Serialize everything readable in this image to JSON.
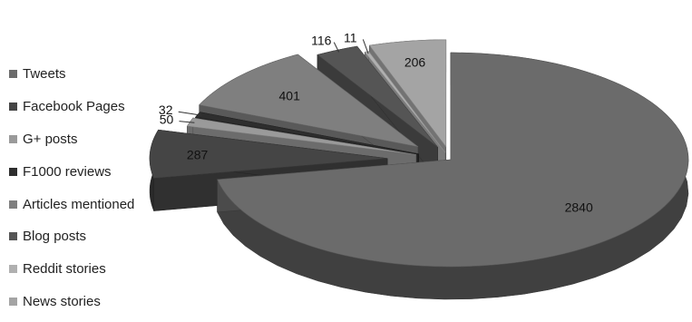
{
  "chart_data": {
    "type": "pie",
    "variant": "3d-exploded",
    "title": "",
    "legend_position": "left",
    "categories": [
      "Tweets",
      "Facebook Pages",
      "G+ posts",
      "F1000 reviews",
      "Articles mentioned",
      "Blog posts",
      "Reddit stories",
      "News stories"
    ],
    "values": [
      2840,
      287,
      50,
      32,
      401,
      116,
      11,
      206
    ],
    "colors": {
      "Tweets": "#6b6b6b",
      "Facebook Pages": "#454545",
      "G+ posts": "#9a9a9a",
      "F1000 reviews": "#2e2e2e",
      "Articles mentioned": "#7f7f7f",
      "Blog posts": "#555555",
      "Reddit stories": "#b0b0b0",
      "News stories": "#a4a4a4"
    },
    "data_labels": [
      "2840",
      "287",
      "50",
      "32",
      "401",
      "116",
      "11",
      "206"
    ]
  }
}
